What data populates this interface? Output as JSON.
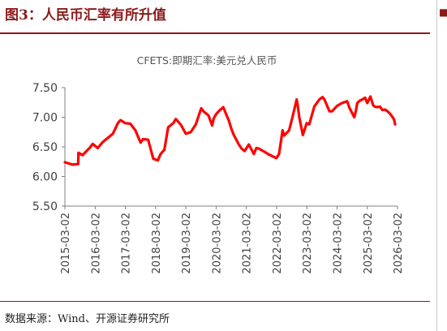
{
  "header": {
    "figure_title": "图3：人民币汇率有所升值"
  },
  "footer": {
    "source": "数据来源：Wind、开源证券研究所"
  },
  "colors": {
    "accent": "#8b1a1a",
    "series": "#ff0000",
    "axis": "#808080"
  },
  "chart_data": {
    "type": "line",
    "title": "CFETS:即期汇率:美元兑人民币",
    "xlabel": "",
    "ylabel": "",
    "ylim": [
      5.5,
      7.5
    ],
    "yticks": [
      "5.50",
      "6.00",
      "6.50",
      "7.00",
      "7.50"
    ],
    "xticks": [
      "2015-03-02",
      "2016-03-02",
      "2017-03-02",
      "2018-03-02",
      "2019-03-02",
      "2020-03-02",
      "2021-03-02",
      "2022-03-02",
      "2023-03-02",
      "2024-03-02",
      "2025-03-02",
      "2026-03-02"
    ],
    "xlim": [
      "2015-03-02",
      "2026-03-02"
    ],
    "grid": false,
    "legend": "none",
    "series": [
      {
        "x": [
          "2015-03-02",
          "2015-06-01",
          "2015-08-10",
          "2015-08-13",
          "2015-10-01",
          "2015-12-31",
          "2016-02-01",
          "2016-04-01",
          "2016-06-01",
          "2016-08-01",
          "2016-10-01",
          "2016-12-01",
          "2017-01-02",
          "2017-03-01",
          "2017-05-01",
          "2017-07-01",
          "2017-09-01",
          "2017-10-01",
          "2017-12-01",
          "2018-02-01",
          "2018-03-28",
          "2018-05-01",
          "2018-06-15",
          "2018-08-01",
          "2018-10-01",
          "2018-11-01",
          "2019-01-02",
          "2019-03-01",
          "2019-05-01",
          "2019-07-01",
          "2019-09-03",
          "2019-10-01",
          "2019-12-01",
          "2020-01-14",
          "2020-02-01",
          "2020-03-01",
          "2020-04-01",
          "2020-05-27",
          "2020-07-01",
          "2020-08-01",
          "2020-09-01",
          "2020-10-01",
          "2020-12-01",
          "2021-01-04",
          "2021-02-10",
          "2021-04-01",
          "2021-05-31",
          "2021-07-01",
          "2021-08-01",
          "2021-10-01",
          "2021-12-01",
          "2022-02-28",
          "2022-04-01",
          "2022-05-13",
          "2022-06-01",
          "2022-08-01",
          "2022-09-01",
          "2022-10-31",
          "2022-11-15",
          "2022-12-01",
          "2023-01-13",
          "2023-03-01",
          "2023-04-01",
          "2023-06-01",
          "2023-08-01",
          "2023-09-08",
          "2023-10-01",
          "2023-12-01",
          "2024-01-02",
          "2024-03-01",
          "2024-05-01",
          "2024-07-01",
          "2024-08-01",
          "2024-09-26",
          "2024-10-15",
          "2024-11-01",
          "2024-12-01",
          "2025-01-02",
          "2025-02-03",
          "2025-03-01",
          "2025-04-09",
          "2025-05-12",
          "2025-06-01",
          "2025-07-01",
          "2025-08-01",
          "2025-09-01",
          "2025-10-01",
          "2025-11-01",
          "2025-12-01",
          "2026-01-02",
          "2026-01-20",
          "2026-02-01"
        ],
        "values": [
          6.24,
          6.2,
          6.21,
          6.4,
          6.36,
          6.49,
          6.55,
          6.48,
          6.58,
          6.65,
          6.72,
          6.9,
          6.95,
          6.9,
          6.89,
          6.78,
          6.57,
          6.63,
          6.62,
          6.3,
          6.27,
          6.38,
          6.45,
          6.83,
          6.9,
          6.97,
          6.87,
          6.72,
          6.75,
          6.88,
          7.15,
          7.1,
          7.03,
          6.86,
          6.98,
          7.05,
          7.1,
          7.17,
          7.05,
          6.95,
          6.81,
          6.7,
          6.54,
          6.47,
          6.43,
          6.54,
          6.38,
          6.48,
          6.47,
          6.42,
          6.37,
          6.31,
          6.38,
          6.78,
          6.69,
          6.78,
          6.95,
          7.3,
          7.18,
          7.0,
          6.7,
          6.9,
          6.88,
          7.18,
          7.3,
          7.34,
          7.3,
          7.1,
          7.1,
          7.19,
          7.24,
          7.27,
          7.15,
          7.0,
          7.11,
          7.24,
          7.28,
          7.3,
          7.33,
          7.24,
          7.35,
          7.2,
          7.18,
          7.17,
          7.18,
          7.12,
          7.13,
          7.1,
          7.06,
          7.0,
          6.96,
          6.88
        ]
      }
    ]
  }
}
